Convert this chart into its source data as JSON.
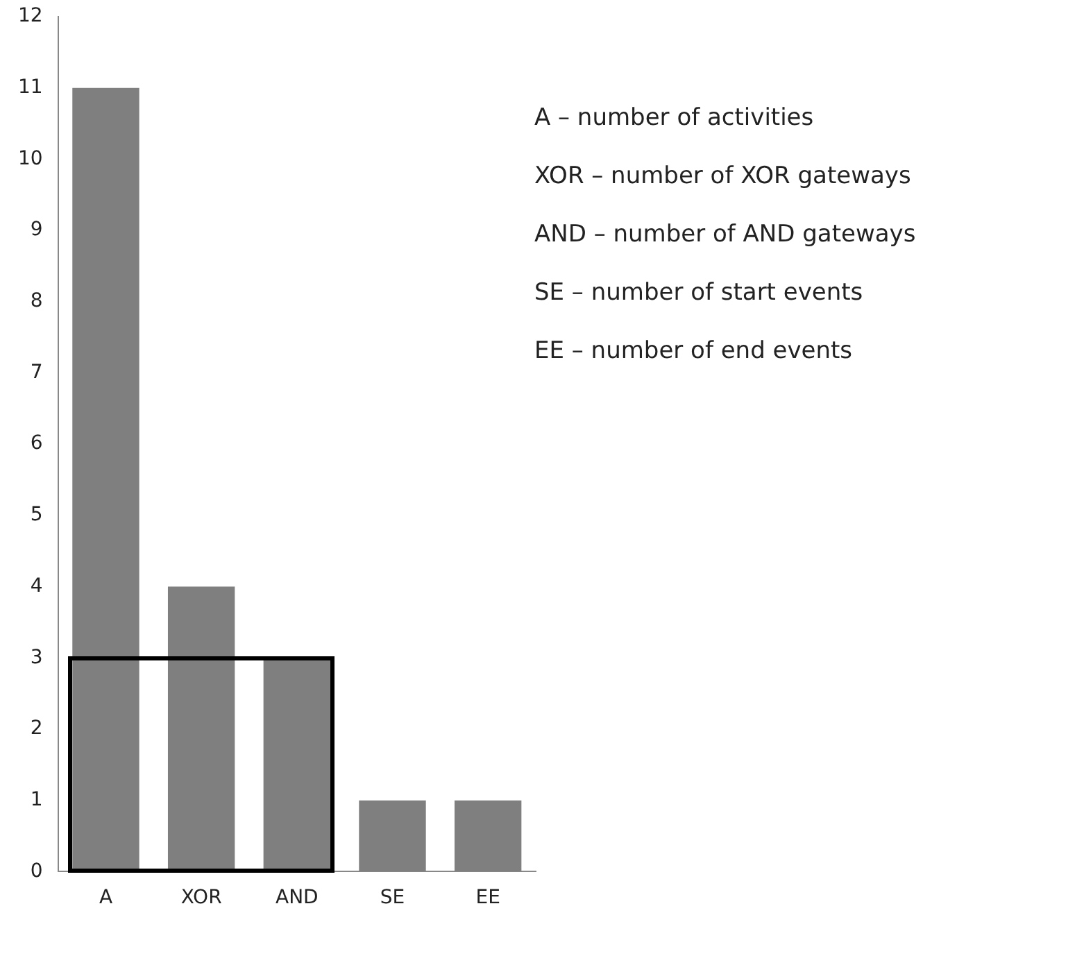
{
  "chart_data": {
    "type": "bar",
    "categories": [
      "A",
      "XOR",
      "AND",
      "SE",
      "EE"
    ],
    "values": [
      11,
      4,
      3,
      1,
      1
    ],
    "color": "#7f7f7f",
    "ylim": [
      0,
      12
    ],
    "yticks": [
      0,
      1,
      2,
      3,
      4,
      5,
      6,
      7,
      8,
      9,
      10,
      11,
      12
    ],
    "annotations": [
      "A – number of activities",
      "XOR – number of XOR gateways",
      "AND – number of AND gateways",
      "SE – number of start events",
      "EE – number of end events"
    ]
  }
}
